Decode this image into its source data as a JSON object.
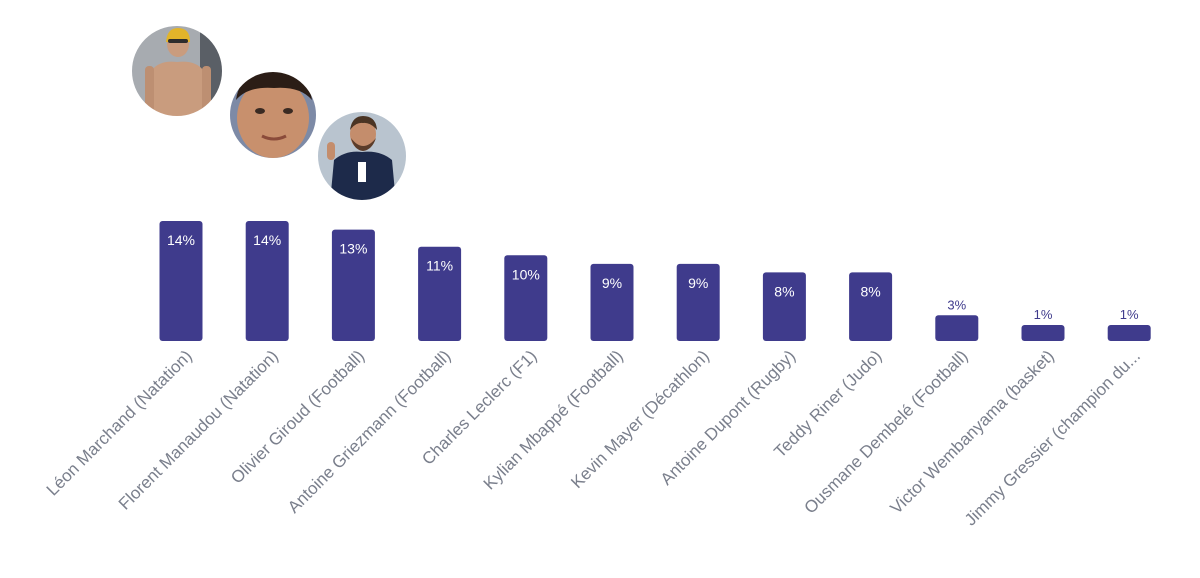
{
  "chart_data": {
    "type": "bar",
    "title": "",
    "xlabel": "",
    "ylabel": "",
    "ylim": [
      0,
      14
    ],
    "grid": false,
    "legend": "none",
    "categories": [
      "Léon Marchand (Natation)",
      "Florent Manaudou (Natation)",
      "Olivier Giroud (Football)",
      "Antoine Griezmann (Football)",
      "Charles Leclerc (F1)",
      "Kylian Mbappé (Football)",
      "Kevin Mayer (Décathlon)",
      "Antoine Dupont (Rugby)",
      "Teddy Riner (Judo)",
      "Ousmane Dembelé (Football)",
      "Victor Wembanyama (basket)",
      "Jimmy Gressier (champion du..."
    ],
    "values": [
      14,
      14,
      13,
      11,
      10,
      9,
      9,
      8,
      8,
      3,
      1,
      1
    ],
    "data_labels": [
      "14%",
      "14%",
      "13%",
      "11%",
      "10%",
      "9%",
      "9%",
      "8%",
      "8%",
      "3%",
      "1%",
      "1%"
    ],
    "colors": {
      "bar": "#3f3b8c",
      "label_inside": "#ffffff",
      "label_outside": "#3f3b8c",
      "category_text": "#7a7f8c"
    }
  },
  "photos": [
    {
      "name": "photo-leon-marchand",
      "subject": "swimmer",
      "colors": {
        "bg": "#9ea3a8",
        "skin": "#c99c7e",
        "cap": "#e2b42a"
      }
    },
    {
      "name": "photo-florent-manaudou",
      "subject": "portrait",
      "colors": {
        "bg": "#7d8aa6",
        "skin": "#c8906d",
        "hair": "#2b1d16"
      }
    },
    {
      "name": "photo-olivier-giroud",
      "subject": "football-player",
      "colors": {
        "bg": "#b9c4cf",
        "skin": "#c48d6c",
        "shirt": "#1d2a4a"
      }
    }
  ]
}
